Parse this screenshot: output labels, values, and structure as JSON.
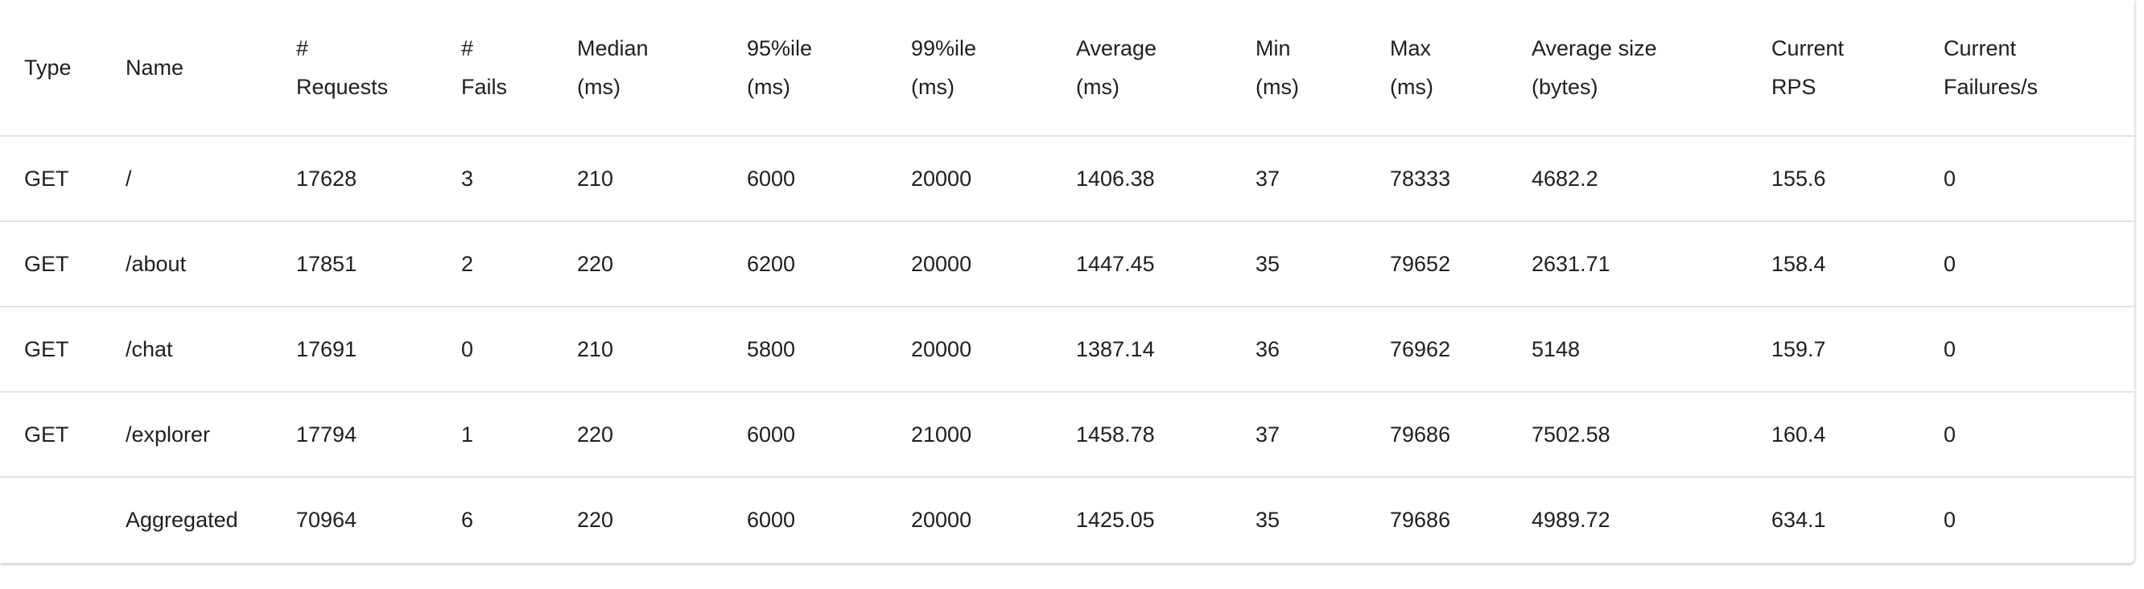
{
  "columns": [
    {
      "line1": "Type",
      "line2": ""
    },
    {
      "line1": "Name",
      "line2": ""
    },
    {
      "line1": "#",
      "line2": "Requests"
    },
    {
      "line1": "#",
      "line2": "Fails"
    },
    {
      "line1": "Median",
      "line2": "(ms)"
    },
    {
      "line1": "95%ile",
      "line2": "(ms)"
    },
    {
      "line1": "99%ile",
      "line2": "(ms)"
    },
    {
      "line1": "Average",
      "line2": "(ms)"
    },
    {
      "line1": "Min",
      "line2": "(ms)"
    },
    {
      "line1": "Max",
      "line2": "(ms)"
    },
    {
      "line1": "Average size",
      "line2": "(bytes)"
    },
    {
      "line1": "Current",
      "line2": "RPS"
    },
    {
      "line1": "Current",
      "line2": "Failures/s"
    }
  ],
  "rows": [
    [
      "GET",
      "/",
      "17628",
      "3",
      "210",
      "6000",
      "20000",
      "1406.38",
      "37",
      "78333",
      "4682.2",
      "155.6",
      "0"
    ],
    [
      "GET",
      "/about",
      "17851",
      "2",
      "220",
      "6200",
      "20000",
      "1447.45",
      "35",
      "79652",
      "2631.71",
      "158.4",
      "0"
    ],
    [
      "GET",
      "/chat",
      "17691",
      "0",
      "210",
      "5800",
      "20000",
      "1387.14",
      "36",
      "76962",
      "5148",
      "159.7",
      "0"
    ],
    [
      "GET",
      "/explorer",
      "17794",
      "1",
      "220",
      "6000",
      "21000",
      "1458.78",
      "37",
      "79686",
      "7502.58",
      "160.4",
      "0"
    ],
    [
      "",
      "Aggregated",
      "70964",
      "6",
      "220",
      "6000",
      "20000",
      "1425.05",
      "35",
      "79686",
      "4989.72",
      "634.1",
      "0"
    ]
  ]
}
